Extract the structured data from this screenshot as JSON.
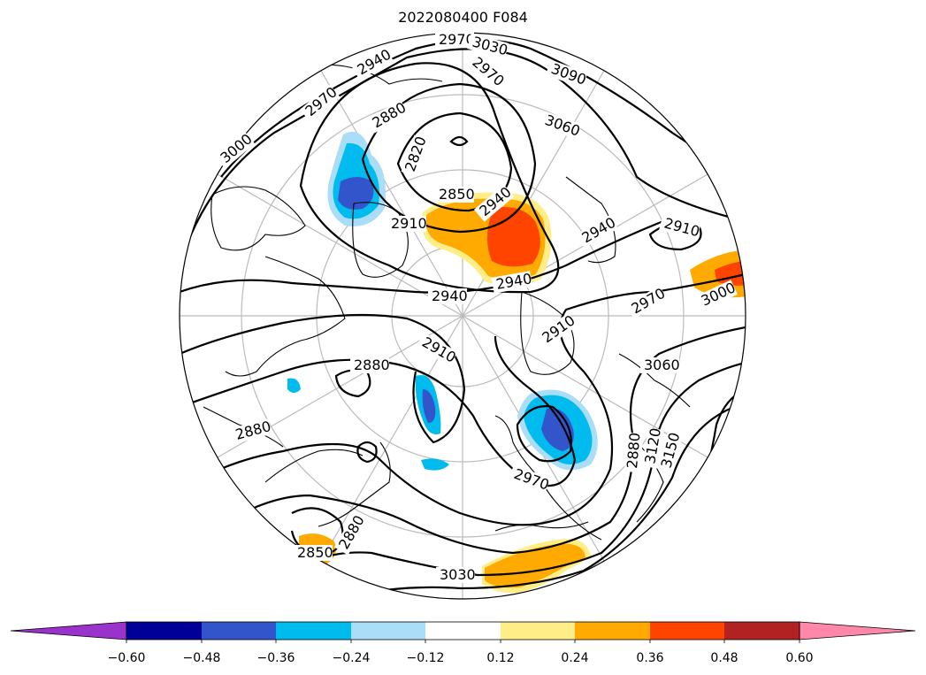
{
  "title": "2022080400 F084",
  "contour_labels": [
    "2970",
    "3030",
    "3090",
    "2940",
    "2970",
    "2970",
    "2880",
    "3060",
    "3000",
    "2820",
    "2850",
    "2940",
    "2910",
    "2910",
    "2940",
    "2940",
    "2940",
    "2970",
    "3000",
    "2910",
    "2910",
    "3060",
    "2880",
    "3120",
    "3150",
    "2880",
    "2850",
    "2880",
    "3030",
    "2970",
    "2880"
  ],
  "colorbar": {
    "colors": [
      "#9933cc",
      "#000099",
      "#3355cc",
      "#00bbee",
      "#aaddf7",
      "#ffffff",
      "#ffee88",
      "#ffaa00",
      "#ff4400",
      "#b22222",
      "#ff88aa"
    ],
    "ticks": [
      "−0.60",
      "−0.48",
      "−0.36",
      "−0.24",
      "−0.12",
      "0.12",
      "0.24",
      "0.36",
      "0.48",
      "0.60"
    ]
  }
}
